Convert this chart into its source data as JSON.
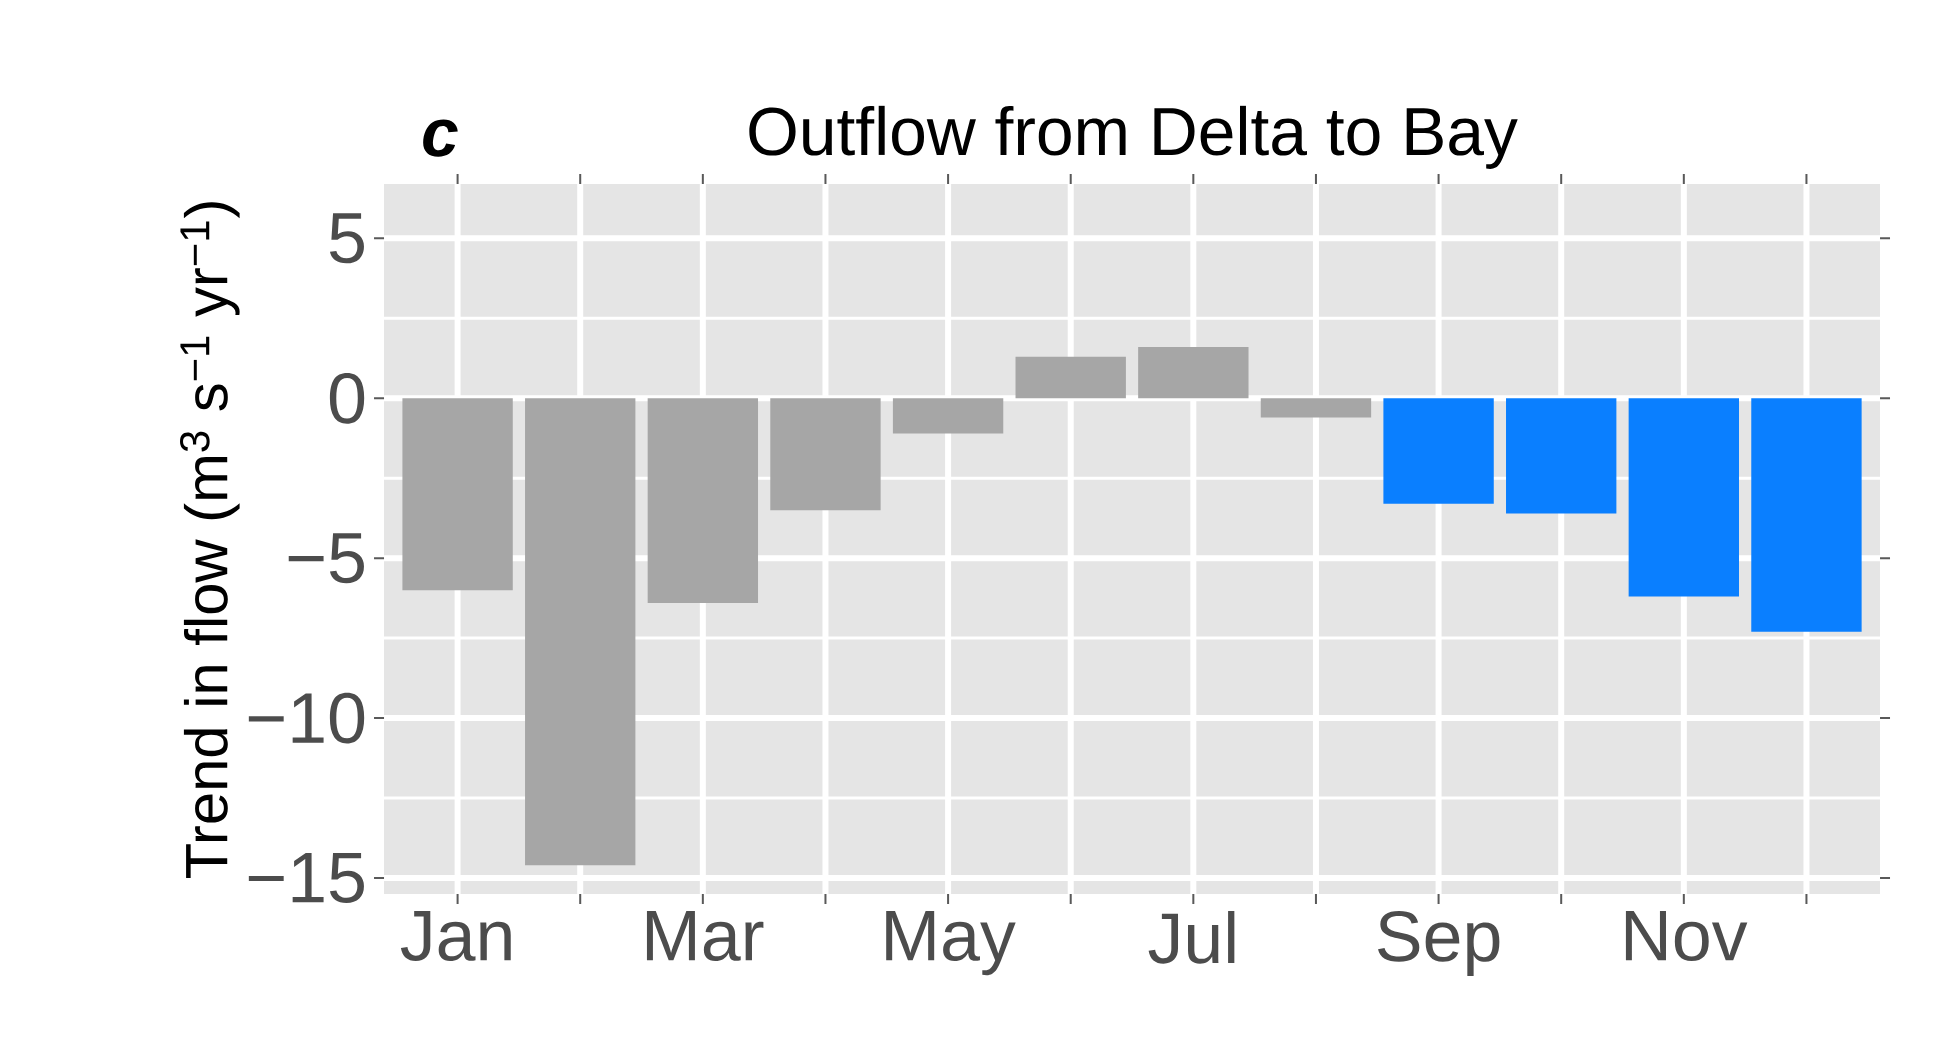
{
  "chart_data": {
    "type": "bar",
    "title": "Outflow from Delta to Bay",
    "ylabel": "Trend in flow (m$^{3}$ s$^{−1}$ yr$^{−1}$)",
    "annotations": [
      "c"
    ],
    "categories": [
      "Jan",
      null,
      "Mar",
      null,
      "May",
      null,
      "Jul",
      null,
      "Sep",
      null,
      "Nov",
      null
    ],
    "values": [
      -6.0,
      -14.6,
      -6.4,
      -3.5,
      -1.1,
      1.3,
      1.6,
      -0.6,
      -3.3,
      -3.6,
      -6.2,
      -7.3
    ],
    "colors": [
      "#a6a6a6",
      "#a6a6a6",
      "#a6a6a6",
      "#a6a6a6",
      "#a6a6a6",
      "#a6a6a6",
      "#a6a6a6",
      "#a6a6a6",
      "#0a7fff",
      "#0a7fff",
      "#0a7fff",
      "#0a7fff"
    ],
    "ylim": [
      -15.5,
      6.7
    ],
    "yticks": [
      5,
      0,
      {
        "value": -5,
        "label": "−5"
      },
      {
        "value": -10,
        "label": "−10"
      },
      {
        "value": -15,
        "label": "−15"
      }
    ],
    "grid": true
  }
}
